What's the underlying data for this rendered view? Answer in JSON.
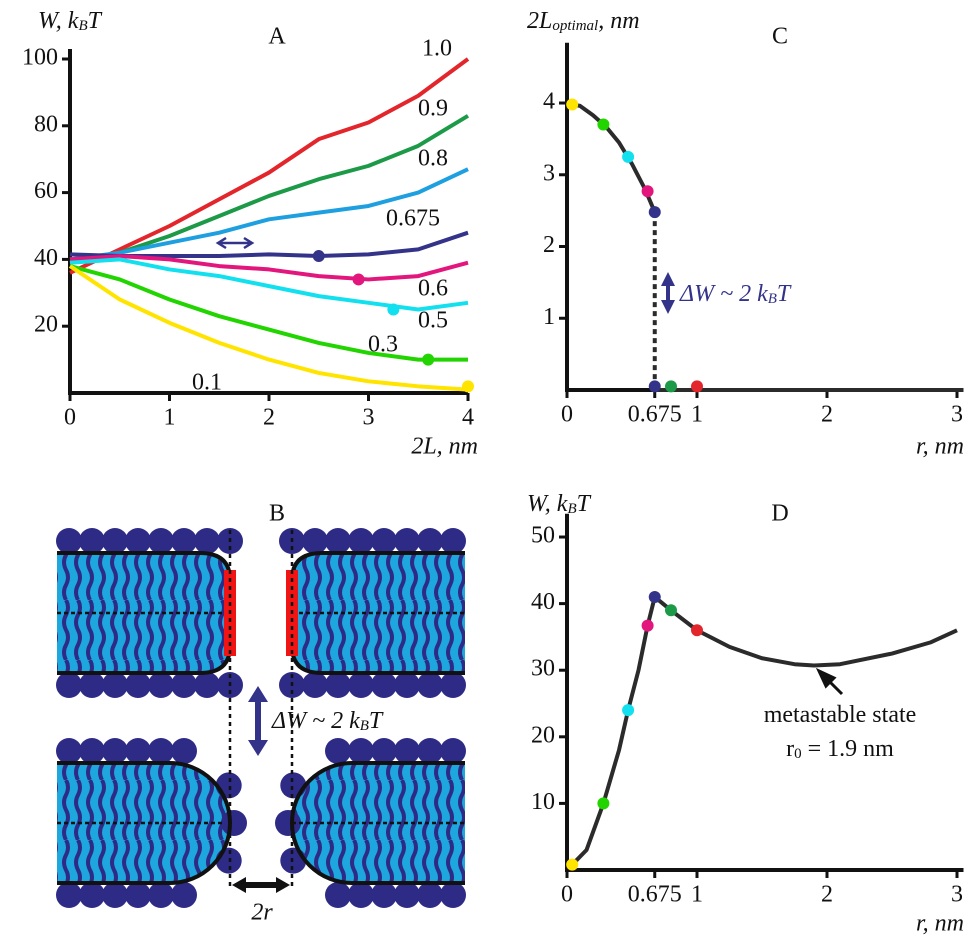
{
  "chart_data": [
    {
      "type": "line",
      "title": "A",
      "y_label": [
        "W, k",
        "B",
        "T"
      ],
      "x_label": "2L, nm",
      "xlim": [
        0,
        4
      ],
      "ylim": [
        0,
        100
      ],
      "xticks": [
        0,
        1,
        2,
        3,
        4
      ],
      "yticks": [
        20,
        40,
        60,
        80,
        100
      ],
      "x": [
        0,
        0.5,
        1,
        1.5,
        2,
        2.5,
        3,
        3.5,
        4
      ],
      "series": [
        {
          "name": "1.0",
          "color": "#e3262b",
          "values": [
            36,
            43,
            50,
            58,
            66,
            76,
            81,
            89,
            100
          ]
        },
        {
          "name": "0.9",
          "color": "#1c9a48",
          "values": [
            39,
            42,
            47,
            53,
            59,
            64,
            68,
            74,
            83
          ]
        },
        {
          "name": "0.8",
          "color": "#1e9fe0",
          "values": [
            40,
            42,
            45,
            48,
            52,
            54,
            56,
            60,
            67
          ]
        },
        {
          "name": "0.675",
          "color": "#33338a",
          "values": [
            41.5,
            41,
            41,
            41,
            41.5,
            41,
            41.5,
            43,
            48
          ],
          "marker": [
            2.5,
            41
          ]
        },
        {
          "name": "0.6",
          "color": "#e2167c",
          "values": [
            40,
            41,
            40,
            38,
            37,
            35,
            34,
            35,
            39
          ],
          "marker": [
            2.9,
            34
          ]
        },
        {
          "name": "0.5",
          "color": "#12e0ef",
          "values": [
            39,
            40,
            37,
            35,
            32,
            29,
            27,
            25,
            27
          ],
          "marker": [
            3.25,
            25
          ]
        },
        {
          "name": "0.3",
          "color": "#22d400",
          "values": [
            38,
            34,
            28,
            23,
            19,
            15,
            12,
            10,
            10
          ],
          "marker": [
            3.6,
            10
          ]
        },
        {
          "name": "0.1",
          "color": "#ffe400",
          "values": [
            38,
            28,
            21,
            15,
            10,
            6,
            3.5,
            2,
            1
          ],
          "marker": [
            4,
            2
          ]
        }
      ]
    },
    {
      "type": "line",
      "title": "C",
      "y_label": [
        "2L",
        "optimal",
        ", nm"
      ],
      "x_label": "r, nm",
      "xlim": [
        0,
        3.05
      ],
      "ylim": [
        0,
        4.7
      ],
      "xticks": [
        0,
        0.675,
        1,
        2,
        3
      ],
      "yticks": [
        1,
        2,
        3,
        4
      ],
      "annotations": [
        [
          "ΔW ~ 2 k",
          "B",
          "T"
        ]
      ],
      "series": [
        {
          "color": "#2b2b2b",
          "x": [
            0.04,
            0.1,
            0.2,
            0.3,
            0.4,
            0.5,
            0.6,
            0.675
          ],
          "values": [
            3.98,
            3.96,
            3.83,
            3.67,
            3.45,
            3.15,
            2.8,
            2.48
          ]
        },
        {
          "color": "#2b2b2b",
          "dash": true,
          "x": [
            0.675,
            0.675
          ],
          "values": [
            2.48,
            0
          ]
        },
        {
          "color": "#2b2b2b",
          "x": [
            0.675,
            3.05
          ],
          "values": [
            0,
            0
          ]
        }
      ],
      "points": {
        "x": [
          0.04,
          0.28,
          0.47,
          0.62,
          0.675,
          0.675,
          0.8,
          1.0
        ],
        "values": [
          3.98,
          3.7,
          3.25,
          2.77,
          2.48,
          0.05,
          0.05,
          0.05
        ],
        "colors": [
          "#ffe400",
          "#22d400",
          "#12e0ef",
          "#e2167c",
          "#33338a",
          "#33338a",
          "#1c9a48",
          "#e3262b"
        ]
      }
    },
    {
      "type": "line",
      "title": "D",
      "y_label": [
        "W, k",
        "B",
        "T"
      ],
      "x_label": "r, nm",
      "xlim": [
        0,
        3.05
      ],
      "ylim": [
        0,
        52
      ],
      "xticks": [
        0,
        0.675,
        1,
        2,
        3
      ],
      "yticks": [
        10,
        20,
        30,
        40,
        50
      ],
      "annotations": [
        [
          "metastable state"
        ],
        [
          "r",
          "0",
          " = 1.9 nm"
        ]
      ],
      "series": [
        {
          "color": "#2b2b2b",
          "x": [
            0.04,
            0.15,
            0.28,
            0.4,
            0.47,
            0.55,
            0.62,
            0.675,
            0.8,
            1.0,
            1.25,
            1.5,
            1.75,
            1.9,
            2.1,
            2.5,
            2.8,
            3.0
          ],
          "values": [
            0.8,
            3,
            10,
            18,
            24,
            30,
            36.7,
            41,
            39,
            36,
            33.5,
            31.8,
            30.9,
            30.7,
            30.9,
            32.5,
            34.2,
            36
          ]
        }
      ],
      "points": {
        "x": [
          0.04,
          0.28,
          0.47,
          0.62,
          0.675,
          0.8,
          1.0
        ],
        "values": [
          0.8,
          10,
          24,
          36.7,
          41,
          39,
          36
        ],
        "colors": [
          "#ffe400",
          "#22d400",
          "#12e0ef",
          "#e2167c",
          "#33338a",
          "#1c9a48",
          "#e3262b"
        ]
      }
    }
  ],
  "diagram": {
    "title": "B",
    "annotation": [
      "ΔW ~ 2 k",
      "B",
      "T"
    ],
    "gap_label": "2r"
  }
}
